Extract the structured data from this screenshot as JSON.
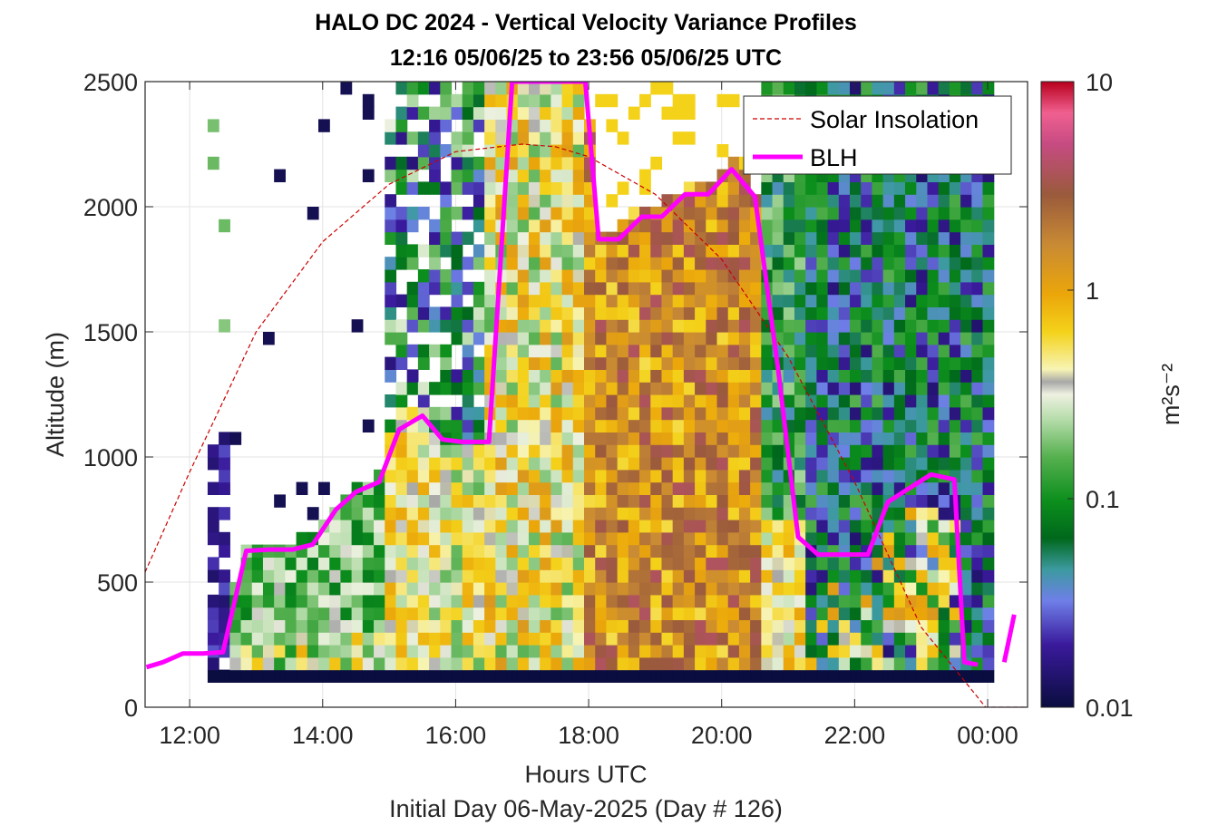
{
  "chart_data": {
    "type": "heatmap",
    "title": "HALO DC 2024 - Vertical Velocity Variance Profiles",
    "subtitle": "12:16 05/06/25 to 23:56 05/06/25  UTC",
    "xlabel": "Hours UTC",
    "xlabel2": "Initial Day 06-May-2025 (Day # 126)",
    "ylabel": "Altitude (m)",
    "xlim": [
      11.33,
      24.6
    ],
    "ylim": [
      0,
      2500
    ],
    "x_ticks": [
      12,
      14,
      16,
      18,
      20,
      22,
      24
    ],
    "x_tick_labels": [
      "12:00",
      "14:00",
      "16:00",
      "18:00",
      "20:00",
      "22:00",
      "00:00"
    ],
    "y_ticks": [
      0,
      500,
      1000,
      1500,
      2000,
      2500
    ],
    "y_tick_labels": [
      "0",
      "500",
      "1000",
      "1500",
      "2000",
      "2500"
    ],
    "grid": true,
    "colorbar": {
      "label": "m²s⁻²",
      "scale": "log",
      "range": [
        0.01,
        10
      ],
      "ticks": [
        0.01,
        0.1,
        1,
        10
      ],
      "tick_labels": [
        "0.01",
        "0.1",
        "1",
        "10"
      ]
    },
    "legend": {
      "placement": "top-right",
      "entries": [
        {
          "name": "Solar Insolation",
          "style": "dashed",
          "color": "#cc0000"
        },
        {
          "name": "BLH",
          "style": "solid",
          "color": "#ff00ff"
        }
      ]
    },
    "heatmap_x_range": [
      12.27,
      23.97
    ],
    "time_step_hours": 0.333,
    "altitude_step_m": 50,
    "layers": [
      {
        "t": [
          12.27,
          24.0
        ],
        "z": [
          100,
          150
        ],
        "v": "min"
      },
      {
        "t": [
          12.27,
          12.6
        ],
        "z": [
          150,
          1100
        ],
        "v": "min"
      },
      {
        "t": [
          12.6,
          15.0
        ],
        "z": [
          150,
          650
        ],
        "v": "mixed-green"
      },
      {
        "t": [
          15.0,
          16.5
        ],
        "z": [
          150,
          1200
        ],
        "v": "mixed-yellow-green"
      },
      {
        "t": [
          16.5,
          18.0
        ],
        "z": [
          150,
          2500
        ],
        "v": "mixed-green-yellow-brown"
      },
      {
        "t": [
          18.0,
          20.0
        ],
        "z": [
          150,
          2000
        ],
        "v": "yellow-orange-brown"
      },
      {
        "t": [
          20.0,
          20.67
        ],
        "z": [
          150,
          2200
        ],
        "v": "brown-orange"
      },
      {
        "t": [
          20.67,
          21.33
        ],
        "z": [
          150,
          700
        ],
        "v": "yellow-green"
      },
      {
        "t": [
          21.33,
          24.0
        ],
        "z": [
          150,
          2500
        ],
        "v": "green-purple"
      }
    ],
    "series": [
      {
        "name": "BLH",
        "x": [
          11.35,
          11.6,
          11.9,
          12.2,
          12.5,
          12.85,
          13.2,
          13.55,
          13.85,
          14.2,
          14.5,
          14.85,
          15.15,
          15.5,
          15.8,
          16.1,
          16.5,
          16.85,
          17.5,
          17.95,
          18.15,
          18.45,
          18.8,
          19.1,
          19.45,
          19.8,
          20.15,
          20.5,
          20.85,
          21.15,
          21.45,
          21.8,
          22.2,
          22.5,
          22.85,
          23.15,
          23.5,
          23.65,
          23.85
        ],
        "y": [
          160,
          180,
          215,
          215,
          220,
          625,
          630,
          630,
          650,
          790,
          860,
          900,
          1110,
          1165,
          1070,
          1060,
          1060,
          2500,
          2500,
          2500,
          1870,
          1870,
          1960,
          1960,
          2050,
          2050,
          2150,
          2040,
          1350,
          680,
          610,
          610,
          610,
          820,
          880,
          930,
          910,
          180,
          170
        ]
      },
      {
        "name": "BLH (next day)",
        "x": [
          24.25,
          24.4
        ],
        "y": [
          180,
          370
        ]
      },
      {
        "name": "Solar Insolation",
        "x": [
          11.33,
          12.0,
          13.0,
          14.0,
          15.0,
          16.0,
          17.0,
          17.5,
          18.0,
          19.0,
          20.0,
          21.0,
          22.0,
          23.0,
          23.97,
          24.6
        ],
        "y": [
          540,
          940,
          1500,
          1860,
          2090,
          2220,
          2250,
          2240,
          2200,
          2050,
          1790,
          1400,
          900,
          320,
          0,
          0
        ]
      }
    ]
  }
}
